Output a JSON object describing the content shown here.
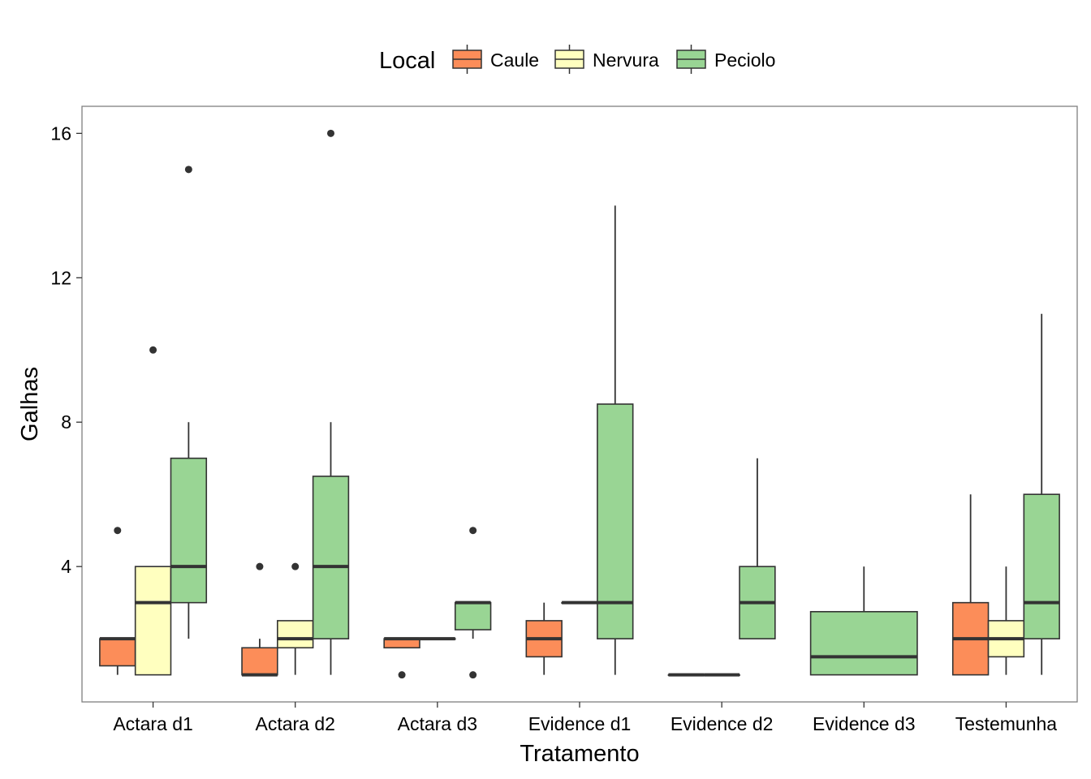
{
  "chart_data": {
    "type": "boxplot",
    "xlabel": "Tratamento",
    "ylabel": "Galhas",
    "ylim": [
      0.25,
      16.75
    ],
    "yticks": [
      4,
      8,
      12,
      16
    ],
    "grid": false,
    "legend": {
      "title": "Local",
      "position": "top",
      "entries": [
        "Caule",
        "Nervura",
        "Peciolo"
      ]
    },
    "colors": {
      "Caule": "#fc8d59",
      "Nervura": "#ffffbf",
      "Peciolo": "#99d594",
      "stroke": "#333333",
      "panel_border": "#7f7f7f"
    },
    "categories": [
      "Actara d1",
      "Actara d2",
      "Actara d3",
      "Evidence d1",
      "Evidence d2",
      "Evidence d3",
      "Testemunha"
    ],
    "series": [
      {
        "name": "Caule",
        "boxes": [
          {
            "category": "Actara d1",
            "min": 1,
            "q1": 1.25,
            "median": 2,
            "q3": 2,
            "max": 2,
            "outliers": [
              5
            ]
          },
          {
            "category": "Actara d2",
            "min": 1,
            "q1": 1,
            "median": 1,
            "q3": 1.75,
            "max": 2,
            "outliers": [
              4
            ]
          },
          {
            "category": "Actara d3",
            "min": 1.75,
            "q1": 1.75,
            "median": 2,
            "q3": 2,
            "max": 2,
            "outliers": [
              1
            ]
          },
          {
            "category": "Evidence d1",
            "min": 1,
            "q1": 1.5,
            "median": 2,
            "q3": 2.5,
            "max": 3,
            "outliers": []
          },
          {
            "category": "Evidence d2",
            "min": 1,
            "q1": 1,
            "median": 1,
            "q3": 1,
            "max": 1,
            "outliers": []
          },
          {
            "category": "Testemunha",
            "min": 1,
            "q1": 1,
            "median": 2,
            "q3": 3,
            "max": 6,
            "outliers": []
          }
        ]
      },
      {
        "name": "Nervura",
        "boxes": [
          {
            "category": "Actara d1",
            "min": 1,
            "q1": 1,
            "median": 3,
            "q3": 4,
            "max": 4,
            "outliers": [
              10
            ]
          },
          {
            "category": "Actara d2",
            "min": 1,
            "q1": 1.75,
            "median": 2,
            "q3": 2.5,
            "max": 2.5,
            "outliers": [
              4
            ]
          },
          {
            "category": "Actara d3",
            "min": 2,
            "q1": 2,
            "median": 2,
            "q3": 2,
            "max": 2,
            "outliers": []
          },
          {
            "category": "Evidence d1",
            "min": 3,
            "q1": 3,
            "median": 3,
            "q3": 3,
            "max": 3,
            "outliers": []
          },
          {
            "category": "Evidence d2",
            "min": 1,
            "q1": 1,
            "median": 1,
            "q3": 1,
            "max": 1,
            "outliers": []
          },
          {
            "category": "Testemunha",
            "min": 1,
            "q1": 1.5,
            "median": 2,
            "q3": 2.5,
            "max": 4,
            "outliers": []
          }
        ]
      },
      {
        "name": "Peciolo",
        "boxes": [
          {
            "category": "Actara d1",
            "min": 2,
            "q1": 3,
            "median": 4,
            "q3": 7,
            "max": 8,
            "outliers": [
              15
            ]
          },
          {
            "category": "Actara d2",
            "min": 1,
            "q1": 2,
            "median": 4,
            "q3": 6.5,
            "max": 8,
            "outliers": [
              16
            ]
          },
          {
            "category": "Actara d3",
            "min": 2,
            "q1": 2.25,
            "median": 3,
            "q3": 3,
            "max": 3,
            "outliers": [
              1,
              5
            ]
          },
          {
            "category": "Evidence d1",
            "min": 1,
            "q1": 2,
            "median": 3,
            "q3": 8.5,
            "max": 14,
            "outliers": []
          },
          {
            "category": "Evidence d2",
            "min": 2,
            "q1": 2,
            "median": 3,
            "q3": 4,
            "max": 7,
            "outliers": []
          },
          {
            "category": "Evidence d3",
            "min": 1,
            "q1": 1,
            "median": 1.5,
            "q3": 2.75,
            "max": 4,
            "outliers": []
          },
          {
            "category": "Testemunha",
            "min": 1,
            "q1": 2,
            "median": 3,
            "q3": 6,
            "max": 11,
            "outliers": []
          }
        ]
      }
    ]
  }
}
